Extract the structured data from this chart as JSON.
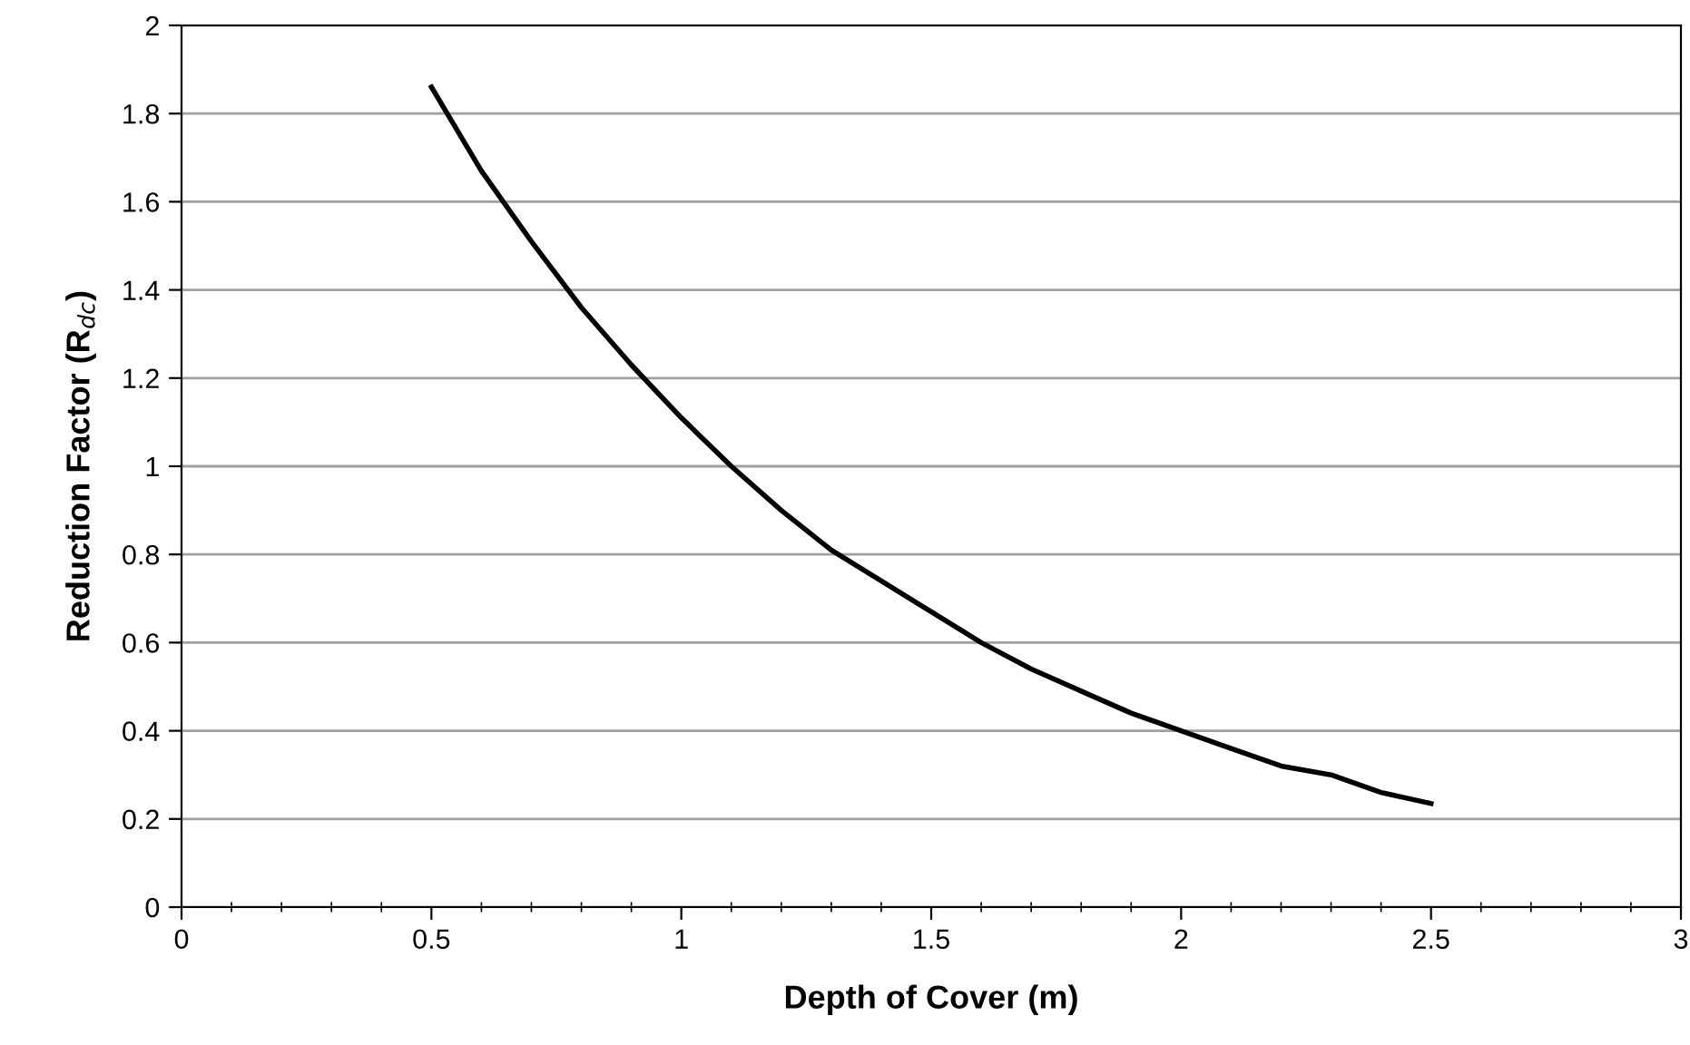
{
  "chart_data": {
    "type": "line",
    "xlabel": "Depth of Cover (m)",
    "ylabel": "Reduction Factor (R$_{dc}$)",
    "x": [
      0.5,
      0.6,
      0.7,
      0.8,
      0.9,
      1.0,
      1.1,
      1.2,
      1.3,
      1.4,
      1.5,
      1.6,
      1.7,
      1.8,
      1.9,
      2.0,
      2.1,
      2.2,
      2.3,
      2.4,
      2.5
    ],
    "series": [
      {
        "color": "#000000",
        "values": [
          1.86,
          1.67,
          1.51,
          1.36,
          1.23,
          1.11,
          1.0,
          0.9,
          0.81,
          0.74,
          0.67,
          0.6,
          0.54,
          0.49,
          0.44,
          0.4,
          0.36,
          0.32,
          0.3,
          0.26,
          0.235
        ]
      }
    ],
    "xlim": [
      0,
      3
    ],
    "xticks": [
      0,
      0.5,
      1,
      1.5,
      2,
      2.5,
      3
    ],
    "ylim": [
      0,
      2
    ],
    "yticks": [
      0,
      0.2,
      0.4,
      0.6,
      0.8,
      1,
      1.2,
      1.4,
      1.6,
      1.8,
      2
    ],
    "grid": "y",
    "marker": "none",
    "line_style": "solid",
    "legend": false
  }
}
